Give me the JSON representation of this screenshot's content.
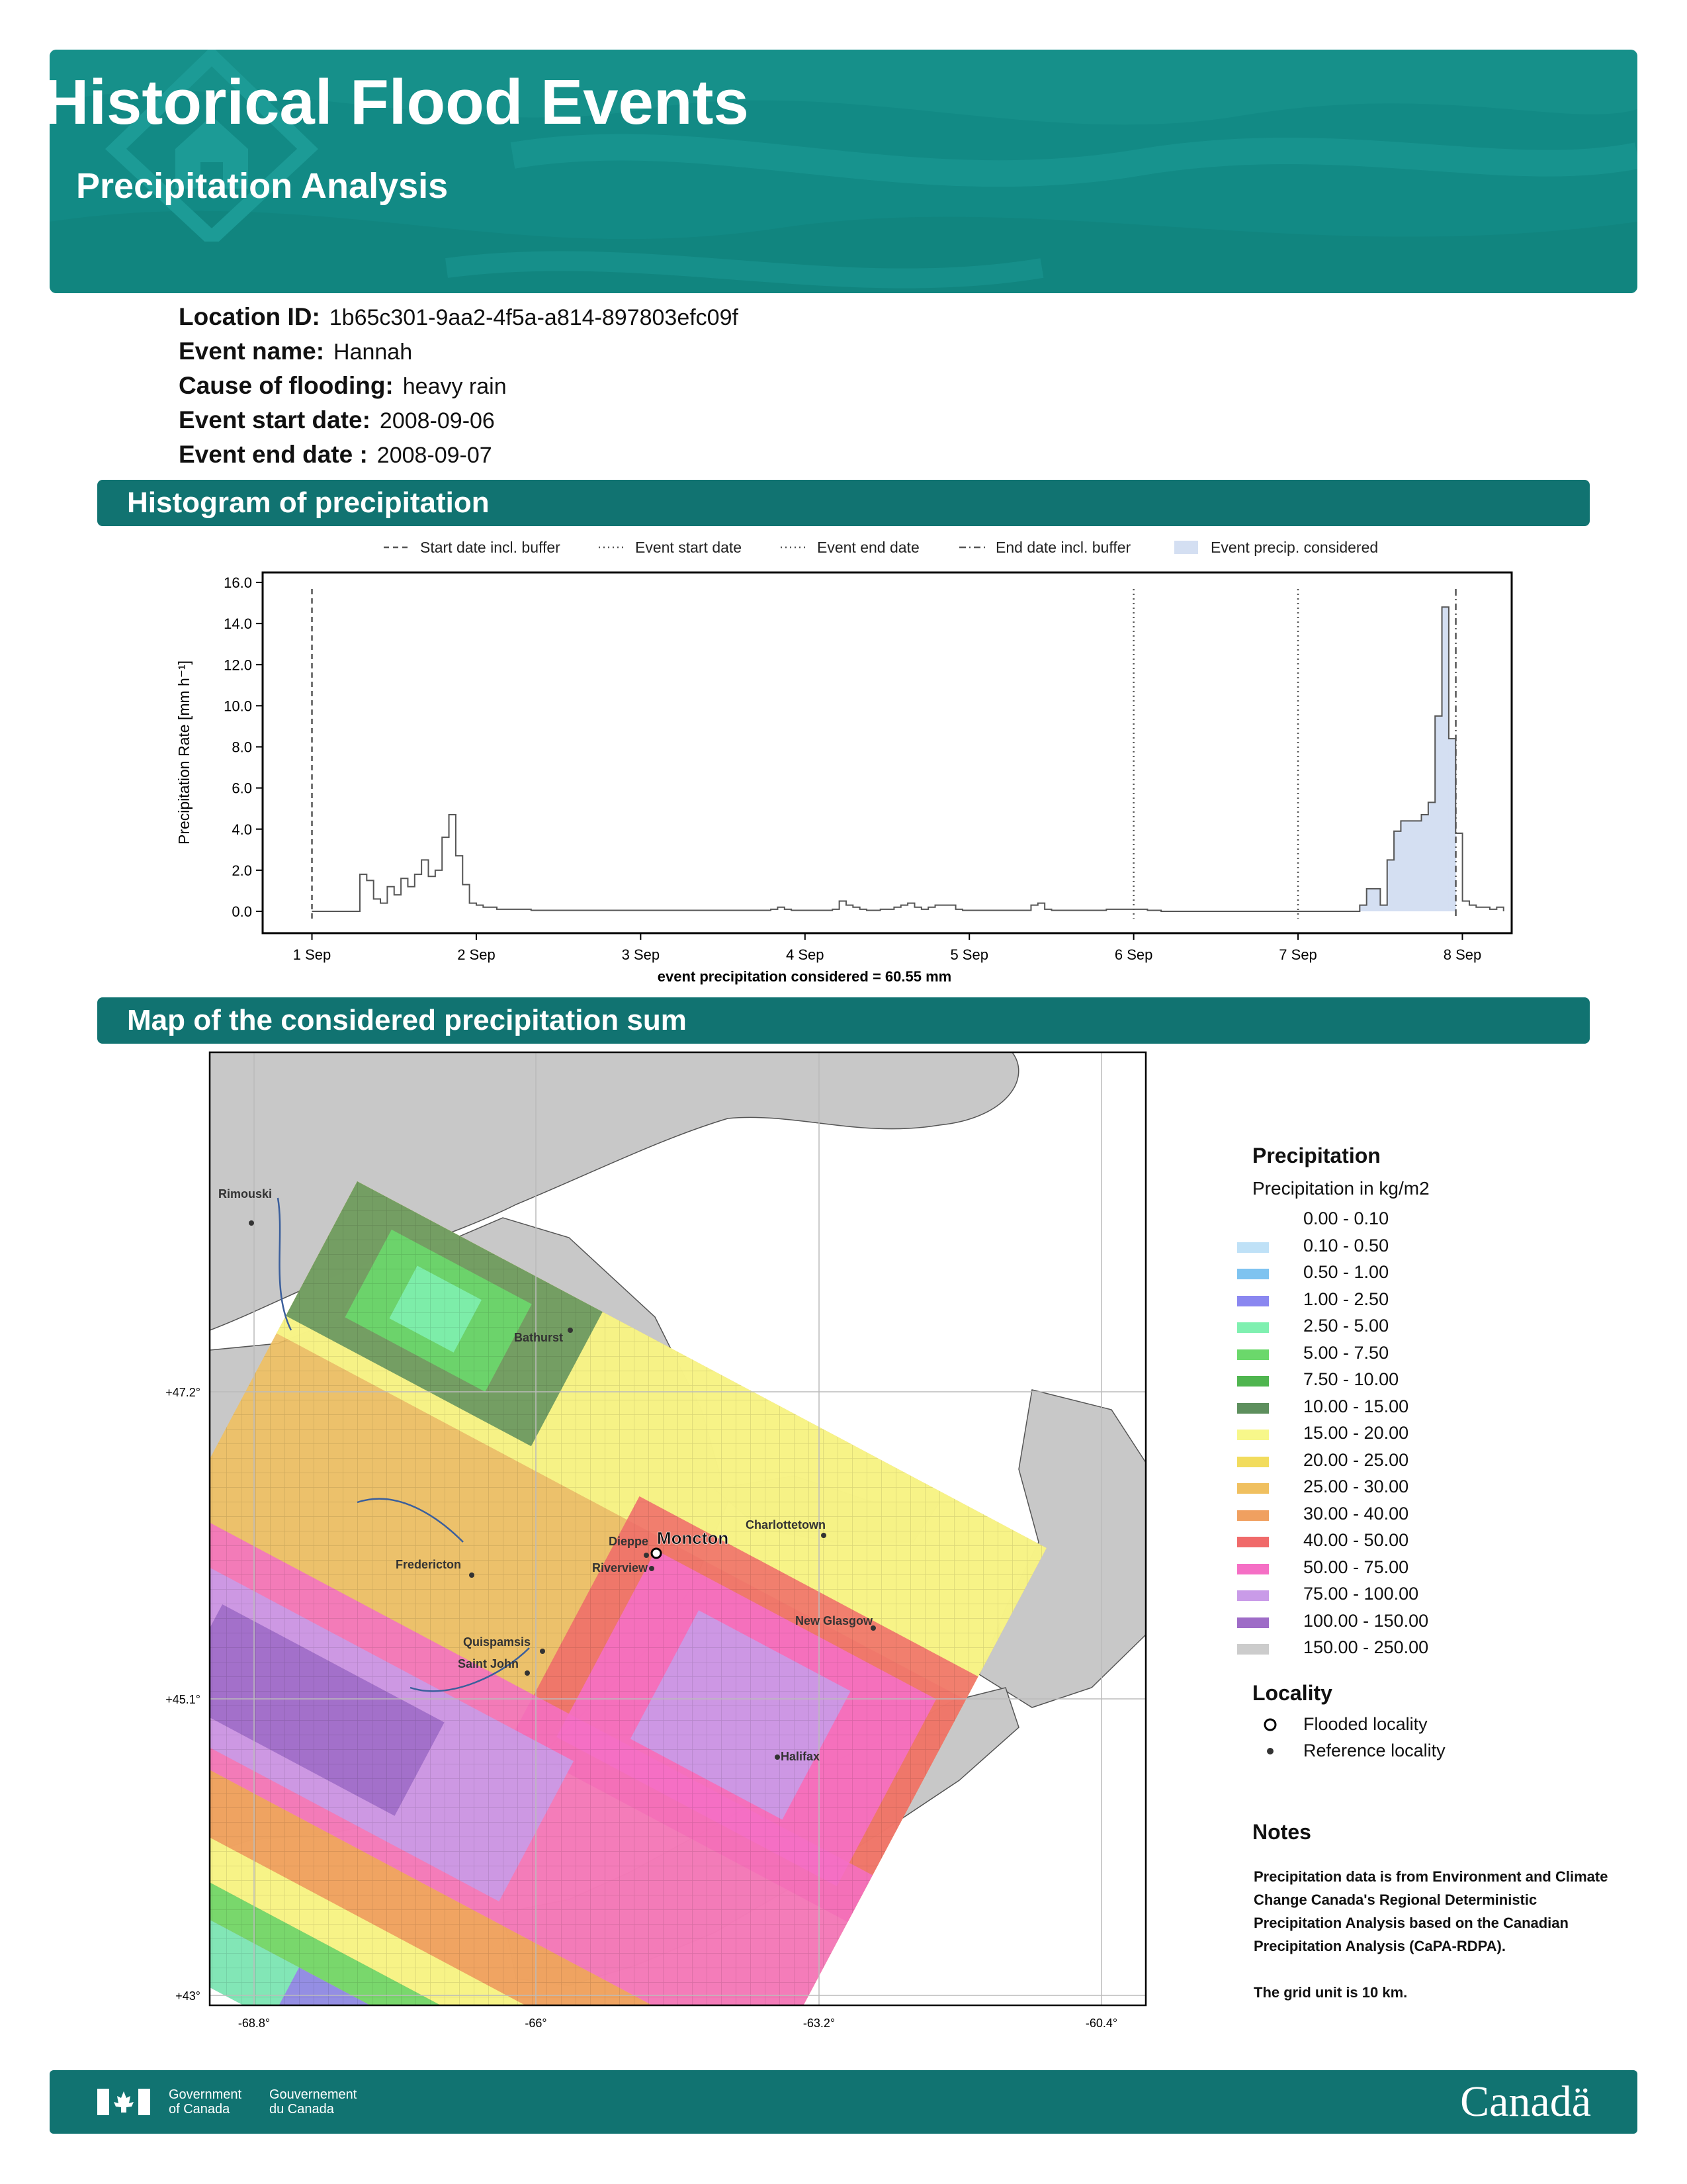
{
  "header": {
    "title": "Historical Flood Events",
    "subtitle": "Precipitation Analysis"
  },
  "meta": [
    {
      "key": "Location ID:",
      "value": "1b65c301-9aa2-4f5a-a814-897803efc09f"
    },
    {
      "key": "Event name:",
      "value": "Hannah"
    },
    {
      "key": "Cause of flooding:",
      "value": "heavy rain"
    },
    {
      "key": "Event start date:",
      "value": "2008-09-06"
    },
    {
      "key": "Event end date :",
      "value": "2008-09-07"
    }
  ],
  "sections": {
    "histogram": "Histogram of precipitation",
    "map": "Map of the considered precipitation sum"
  },
  "chart_data": {
    "type": "line",
    "ylabel": "Precipitation Rate [mm h⁻¹]",
    "xlabel": "event precipitation considered = 60.55 mm",
    "ylim": [
      0,
      16
    ],
    "yticks": [
      "0.0",
      "2.0",
      "4.0",
      "6.0",
      "8.0",
      "10.0",
      "12.0",
      "14.0",
      "16.0"
    ],
    "xticks": [
      "1 Sep",
      "2 Sep",
      "3 Sep",
      "4 Sep",
      "5 Sep",
      "6 Sep",
      "7 Sep",
      "8 Sep"
    ],
    "xlim_days": [
      0.7,
      8.3
    ],
    "legend": [
      {
        "label": "Start date incl. buffer",
        "style": "dashed"
      },
      {
        "label": "Event start date",
        "style": "dotted"
      },
      {
        "label": "Event end date",
        "style": "dotted"
      },
      {
        "label": "End date incl. buffer",
        "style": "dashdot"
      },
      {
        "label": "Event precip. considered",
        "style": "fill"
      }
    ],
    "markers": {
      "start_buffer": 1.0,
      "event_start": 6.0,
      "event_end": 7.0,
      "end_buffer": 7.96
    },
    "step_width_days": 0.04167,
    "series_day_start": 1.0,
    "values": [
      0,
      0,
      0,
      0,
      0,
      0,
      0,
      1.8,
      1.5,
      0.6,
      0.4,
      1.2,
      0.8,
      1.6,
      1.2,
      1.8,
      2.5,
      1.7,
      2.0,
      3.6,
      4.7,
      2.7,
      1.3,
      0.4,
      0.3,
      0.2,
      0.2,
      0.1,
      0.1,
      0.1,
      0.1,
      0.1,
      0.05,
      0.05,
      0.05,
      0.05,
      0.05,
      0.05,
      0.05,
      0.05,
      0.05,
      0.05,
      0.05,
      0.05,
      0.05,
      0.05,
      0.05,
      0.05,
      0.05,
      0.05,
      0.05,
      0.05,
      0.05,
      0.05,
      0.05,
      0.05,
      0.05,
      0.05,
      0.05,
      0.05,
      0.05,
      0.05,
      0.05,
      0.05,
      0.05,
      0.05,
      0.05,
      0.1,
      0.2,
      0.1,
      0.05,
      0.05,
      0.05,
      0.05,
      0.05,
      0.05,
      0.1,
      0.5,
      0.3,
      0.2,
      0.1,
      0.05,
      0.05,
      0.1,
      0.1,
      0.2,
      0.3,
      0.4,
      0.2,
      0.1,
      0.2,
      0.3,
      0.3,
      0.3,
      0.1,
      0.05,
      0.05,
      0.05,
      0.05,
      0.05,
      0.05,
      0.05,
      0.05,
      0.05,
      0.05,
      0.3,
      0.4,
      0.1,
      0.05,
      0.05,
      0.05,
      0.05,
      0.05,
      0.05,
      0.05,
      0.05,
      0.1,
      0.1,
      0.1,
      0.1,
      0.1,
      0.1,
      0.05,
      0.05,
      0,
      0,
      0,
      0,
      0,
      0,
      0,
      0,
      0,
      0,
      0,
      0,
      0,
      0,
      0,
      0,
      0,
      0,
      0,
      0,
      0,
      0,
      0,
      0,
      0,
      0,
      0,
      0,
      0,
      0.3,
      1.1,
      1.1,
      0.3,
      2.5,
      3.9,
      4.4,
      4.4,
      4.4,
      4.7,
      5.3,
      9.5,
      14.8,
      8.4,
      3.8,
      0.5,
      0.3,
      0.2,
      0.2,
      0.1,
      0.2
    ],
    "event_range": [
      7.0,
      7.96
    ]
  },
  "map": {
    "lat_labels": [
      "+47.2°",
      "+45.1°",
      "+43°"
    ],
    "lon_labels": [
      "-68.8°",
      "-66°",
      "-63.2°",
      "-60.4°"
    ],
    "places": [
      {
        "name": "Rimouski",
        "type": "reference"
      },
      {
        "name": "Bathurst",
        "type": "reference"
      },
      {
        "name": "Charlottetown",
        "type": "reference"
      },
      {
        "name": "Dieppe",
        "type": "reference"
      },
      {
        "name": "Moncton",
        "type": "flooded"
      },
      {
        "name": "Riverview",
        "type": "reference"
      },
      {
        "name": "Fredericton",
        "type": "reference"
      },
      {
        "name": "New Glasgow",
        "type": "reference"
      },
      {
        "name": "Quispamsis",
        "type": "reference"
      },
      {
        "name": "Saint John",
        "type": "reference"
      },
      {
        "name": "Halifax",
        "type": "reference"
      }
    ]
  },
  "legend": {
    "title": "Precipitation",
    "unit": "Precipitation in kg/m2",
    "items": [
      {
        "label": "0.00 - 0.10",
        "color": "#ffffff"
      },
      {
        "label": "0.10 - 0.50",
        "color": "#bfe1f7"
      },
      {
        "label": "0.50 - 1.00",
        "color": "#7ec3f0"
      },
      {
        "label": "1.00 - 2.50",
        "color": "#8a87f0"
      },
      {
        "label": "2.50 - 5.00",
        "color": "#7ff0b0"
      },
      {
        "label": "5.00 - 7.50",
        "color": "#6bd86b"
      },
      {
        "label": "7.50 - 10.00",
        "color": "#4fb54f"
      },
      {
        "label": "10.00 - 15.00",
        "color": "#5d8f5d"
      },
      {
        "label": "15.00 - 20.00",
        "color": "#f7f78a"
      },
      {
        "label": "20.00 - 25.00",
        "color": "#f2dc5d"
      },
      {
        "label": "25.00 - 30.00",
        "color": "#f0c060"
      },
      {
        "label": "30.00 - 40.00",
        "color": "#f0a060"
      },
      {
        "label": "40.00 - 50.00",
        "color": "#f06a6a"
      },
      {
        "label": "50.00 - 75.00",
        "color": "#f56fc5"
      },
      {
        "label": "75.00 - 100.00",
        "color": "#c99be8"
      },
      {
        "label": "100.00 - 150.00",
        "color": "#9e6cc7"
      },
      {
        "label": "150.00 - 250.00",
        "color": "#cccccc"
      }
    ]
  },
  "locality": {
    "title": "Locality",
    "flooded": "Flooded locality",
    "reference": "Reference locality"
  },
  "notes": {
    "title": "Notes",
    "text": "Precipitation data is from Environment and Climate Change Canada's Regional Deterministic Precipitation Analysis based on the Canadian Precipitation Analysis (CaPA-RDPA).\n\nThe grid unit is 10 km."
  },
  "footer": {
    "gov_en": "Government\nof Canada",
    "gov_fr": "Gouvernement\ndu Canada",
    "wordmark": "Canadä"
  }
}
